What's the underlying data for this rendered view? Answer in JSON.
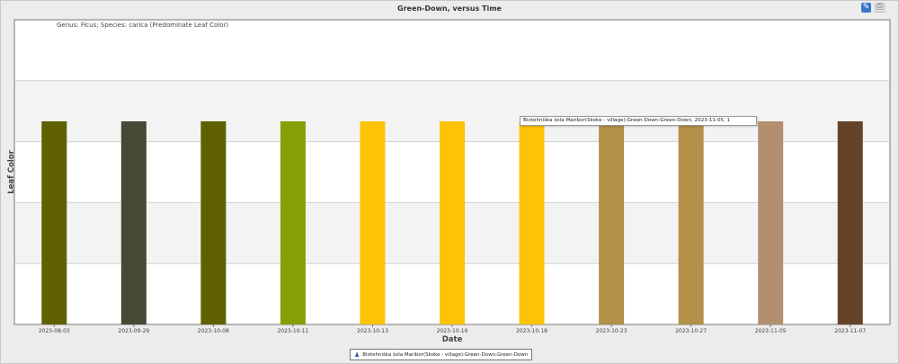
{
  "header": {
    "title": "Green-Down, versus Time",
    "edit_icon": "pencil-icon",
    "print_icon": "printer-icon"
  },
  "annotation": "Genus: Ficus; Species: carica (Predominate Leaf Color)",
  "tooltip": "Biotehniška šola Maribor(Skoke - village):Green-Down:Green-Down, 2023-11-05, 1",
  "legend": {
    "icon": "person-icon",
    "label": "Biotehniška šola Maribor(Skoke - village):Green-Down:Green-Down"
  },
  "chart_data": {
    "type": "bar",
    "title": "Green-Down, versus Time",
    "xlabel": "Date",
    "ylabel": "Leaf Color",
    "categories": [
      "2023-08-03",
      "2023-09-29",
      "2023-10-08",
      "2023-10-11",
      "2023-10-13",
      "2023-10-16",
      "2023-10-18",
      "2023-10-23",
      "2023-10-27",
      "2023-11-05",
      "2023-11-07"
    ],
    "values": [
      1,
      1,
      1,
      1,
      1,
      1,
      1,
      1,
      1,
      1,
      1
    ],
    "bar_colors": [
      "#5f6100",
      "#474836",
      "#5f6100",
      "#84a004",
      "#fcc307",
      "#fcc307",
      "#fcc307",
      "#b39148",
      "#b39148",
      "#b38f70",
      "#63442a"
    ],
    "ylim": [
      0,
      1.5
    ],
    "grid": "horizontal bands",
    "series": [
      {
        "name": "Biotehniška šola Maribor(Skoke - village):Green-Down:Green-Down",
        "values": [
          1,
          1,
          1,
          1,
          1,
          1,
          1,
          1,
          1,
          1,
          1
        ]
      }
    ]
  }
}
